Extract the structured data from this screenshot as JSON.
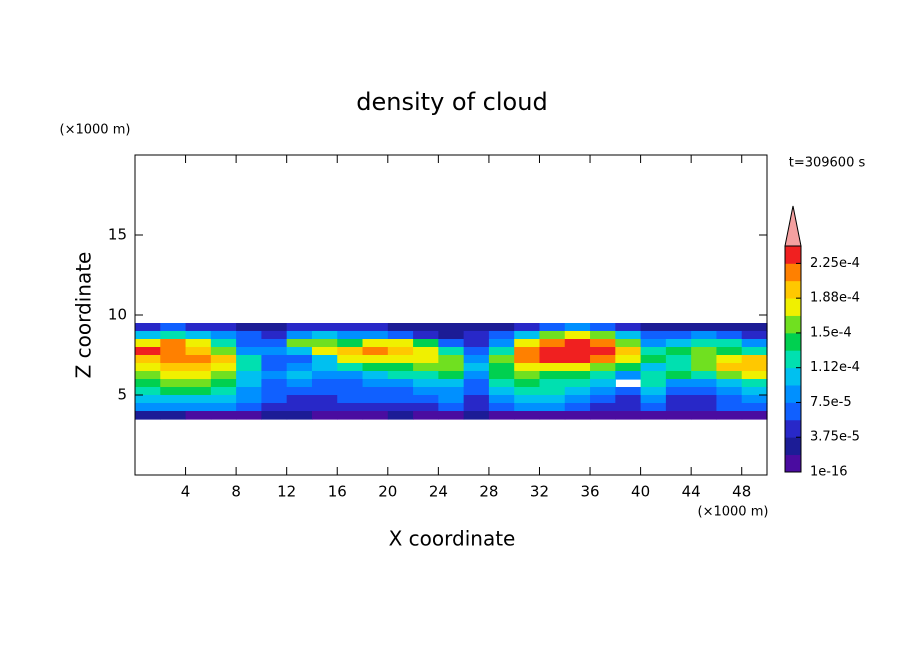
{
  "chart_data": {
    "type": "contour",
    "title": "density of cloud",
    "xlabel": "X coordinate",
    "ylabel": "Z coordinate",
    "x_unit_label": "(×1000 m)",
    "y_unit_label": "(×1000 m)",
    "time_label": "t=309600 s",
    "xlim": [
      0,
      50
    ],
    "ylim": [
      0,
      20
    ],
    "xticks": [
      4,
      8,
      12,
      16,
      20,
      24,
      28,
      32,
      36,
      40,
      44,
      48
    ],
    "yticks": [
      5,
      10,
      15
    ],
    "x": [
      1,
      3,
      5,
      7,
      9,
      11,
      13,
      15,
      17,
      19,
      21,
      23,
      25,
      27,
      29,
      31,
      33,
      35,
      37,
      39,
      41,
      43,
      45,
      47,
      49
    ],
    "z": [
      9.25,
      8.75,
      8.25,
      7.75,
      7.25,
      6.75,
      6.25,
      5.75,
      5.25,
      4.75,
      4.25,
      3.75
    ],
    "values": [
      [
        4.7e-05,
        6.6e-05,
        4.7e-05,
        4.7e-05,
        2.8e-05,
        2.8e-05,
        4.7e-05,
        4.7e-05,
        4.7e-05,
        4.7e-05,
        2.8e-05,
        2.8e-05,
        2.8e-05,
        2.8e-05,
        2.8e-05,
        4.7e-05,
        6.6e-05,
        8.4e-05,
        6.6e-05,
        4.7e-05,
        2.8e-05,
        2.8e-05,
        2.8e-05,
        2.8e-05,
        2.8e-05
      ],
      [
        0.000103,
        0.000122,
        0.000103,
        8.4e-05,
        6.6e-05,
        4.7e-05,
        8.4e-05,
        0.000103,
        8.4e-05,
        8.4e-05,
        6.6e-05,
        4.7e-05,
        2.8e-05,
        4.7e-05,
        6.6e-05,
        0.000103,
        0.000159,
        0.000178,
        0.000159,
        0.000103,
        6.6e-05,
        6.6e-05,
        8.4e-05,
        6.6e-05,
        4.7e-05
      ],
      [
        0.000178,
        0.000216,
        0.000178,
        0.000122,
        6.6e-05,
        6.6e-05,
        0.000159,
        0.000159,
        0.000141,
        0.000178,
        0.000178,
        0.000141,
        6.6e-05,
        4.7e-05,
        8.4e-05,
        0.000178,
        0.000216,
        0.000234,
        0.000216,
        0.000159,
        8.4e-05,
        0.000103,
        0.000122,
        0.000122,
        8.4e-05
      ],
      [
        0.000234,
        0.000216,
        0.000197,
        0.000159,
        8.4e-05,
        8.4e-05,
        0.000103,
        0.000178,
        0.000197,
        0.000216,
        0.000197,
        0.000178,
        0.000122,
        6.6e-05,
        0.000122,
        0.000216,
        0.000234,
        0.000234,
        0.000234,
        0.000197,
        0.000122,
        0.000141,
        0.000159,
        0.000141,
        0.000122
      ],
      [
        0.000197,
        0.000216,
        0.000216,
        0.000197,
        0.000122,
        6.6e-05,
        6.6e-05,
        0.000103,
        0.000178,
        0.000178,
        0.000178,
        0.000178,
        0.000159,
        8.4e-05,
        0.000159,
        0.000216,
        0.000234,
        0.000234,
        0.000216,
        0.000178,
        0.000141,
        0.000122,
        0.000159,
        0.000178,
        0.000197
      ],
      [
        0.000178,
        0.000197,
        0.000197,
        0.000178,
        0.000122,
        6.6e-05,
        8.4e-05,
        0.000103,
        0.000122,
        0.000141,
        0.000141,
        0.000159,
        0.000159,
        0.000103,
        0.000141,
        0.000178,
        0.000178,
        0.000178,
        0.000159,
        0.000141,
        0.000103,
        0.000122,
        0.000159,
        0.000197,
        0.000197
      ],
      [
        0.000159,
        0.000178,
        0.000178,
        0.000159,
        0.000103,
        8.4e-05,
        0.000103,
        8.4e-05,
        8.4e-05,
        0.000103,
        0.000122,
        0.000122,
        0.000141,
        8.4e-05,
        0.000141,
        0.000159,
        0.000141,
        0.000141,
        0.000122,
        8.4e-05,
        0.000122,
        0.000141,
        0.000122,
        0.000159,
        0.000178
      ],
      [
        0.000141,
        0.000159,
        0.000159,
        0.000141,
        0.000103,
        6.6e-05,
        8.4e-05,
        6.6e-05,
        6.6e-05,
        8.4e-05,
        8.4e-05,
        0.000103,
        0.000103,
        6.6e-05,
        0.000122,
        0.000141,
        0.000122,
        0.000122,
        0.000103,
        null,
        0.000122,
        8.4e-05,
        8.4e-05,
        0.000103,
        0.000122
      ],
      [
        0.000122,
        0.000141,
        0.000141,
        0.000122,
        8.4e-05,
        6.6e-05,
        6.6e-05,
        6.6e-05,
        6.6e-05,
        6.6e-05,
        6.6e-05,
        8.4e-05,
        8.4e-05,
        6.6e-05,
        0.000103,
        0.000122,
        0.000122,
        0.000103,
        8.4e-05,
        6.6e-05,
        0.000103,
        6.6e-05,
        6.6e-05,
        8.4e-05,
        0.000103
      ],
      [
        0.000103,
        0.000103,
        0.000103,
        0.000103,
        8.4e-05,
        6.6e-05,
        4.7e-05,
        4.7e-05,
        6.6e-05,
        6.6e-05,
        6.6e-05,
        6.6e-05,
        8.4e-05,
        4.7e-05,
        8.4e-05,
        0.000103,
        0.000103,
        8.4e-05,
        6.6e-05,
        4.7e-05,
        8.4e-05,
        4.7e-05,
        4.7e-05,
        6.6e-05,
        8.4e-05
      ],
      [
        8.4e-05,
        8.4e-05,
        8.4e-05,
        8.4e-05,
        6.6e-05,
        4.7e-05,
        4.7e-05,
        4.7e-05,
        4.7e-05,
        4.7e-05,
        4.7e-05,
        4.7e-05,
        6.6e-05,
        4.7e-05,
        6.6e-05,
        8.4e-05,
        8.4e-05,
        6.6e-05,
        4.7e-05,
        4.7e-05,
        6.6e-05,
        4.7e-05,
        4.7e-05,
        6.6e-05,
        6.6e-05
      ],
      [
        2.8e-05,
        2.8e-05,
        9.4e-06,
        9.4e-06,
        9.4e-06,
        2.8e-05,
        2.8e-05,
        9.4e-06,
        9.4e-06,
        9.4e-06,
        2.8e-05,
        9.4e-06,
        9.4e-06,
        2.8e-05,
        9.4e-06,
        9.4e-06,
        9.4e-06,
        9.4e-06,
        9.4e-06,
        9.4e-06,
        9.4e-06,
        9.4e-06,
        9.4e-06,
        9.4e-06,
        9.4e-06
      ]
    ],
    "colorbar": {
      "levels": [
        1e-16,
        1.875e-05,
        3.75e-05,
        5.625e-05,
        7.5e-05,
        9.375e-05,
        0.0001125,
        0.00013125,
        0.00015,
        0.00016875,
        0.0001875,
        0.00020625,
        0.000225,
        0.00024375
      ],
      "colors": [
        "#4a0ca0",
        "#1c1c96",
        "#2828c8",
        "#1060ff",
        "#0090ff",
        "#00c0f0",
        "#00e0b0",
        "#00d050",
        "#70e020",
        "#f0f000",
        "#ffc800",
        "#ff8000",
        "#f02020"
      ],
      "over_color": "#f4a0a0",
      "ticks": [
        1e-16,
        {
          "value": 3.75e-05,
          "label": "3.75e-5"
        },
        {
          "value": 7.5e-05,
          "label": "7.5e-5"
        },
        {
          "value": 0.0001125,
          "label": "1.12e-4"
        },
        {
          "value": 0.00015,
          "label": "1.5e-4"
        },
        {
          "value": 0.0001875,
          "label": "1.88e-4"
        },
        {
          "value": 0.000225,
          "label": "2.25e-4"
        }
      ]
    }
  }
}
